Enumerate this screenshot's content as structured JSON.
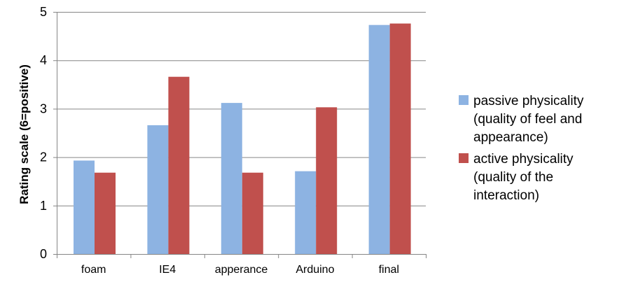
{
  "chart_data": {
    "type": "bar",
    "categories": [
      "foam",
      "IE4",
      "apperance",
      "Arduino",
      "final"
    ],
    "series": [
      {
        "name": "passive physicality (quality of feel and appearance)",
        "legend_lines": [
          "passive physicality",
          "(quality of feel and",
          "appearance)"
        ],
        "color": "#8DB3E2",
        "values": [
          1.93,
          2.66,
          3.12,
          1.71,
          4.73
        ]
      },
      {
        "name": "active physicality (quality of the interaction)",
        "legend_lines": [
          "active physicality",
          "(quality of the",
          "interaction)"
        ],
        "color": "#C0504D",
        "values": [
          1.68,
          3.66,
          1.68,
          3.03,
          4.76
        ]
      }
    ],
    "ylabel": "Rating scale  (6=positive)",
    "xlabel": "",
    "title": "",
    "ylim": [
      0,
      5
    ],
    "yticks": [
      0,
      1,
      2,
      3,
      4,
      5
    ],
    "grid": true,
    "legend": "right"
  }
}
